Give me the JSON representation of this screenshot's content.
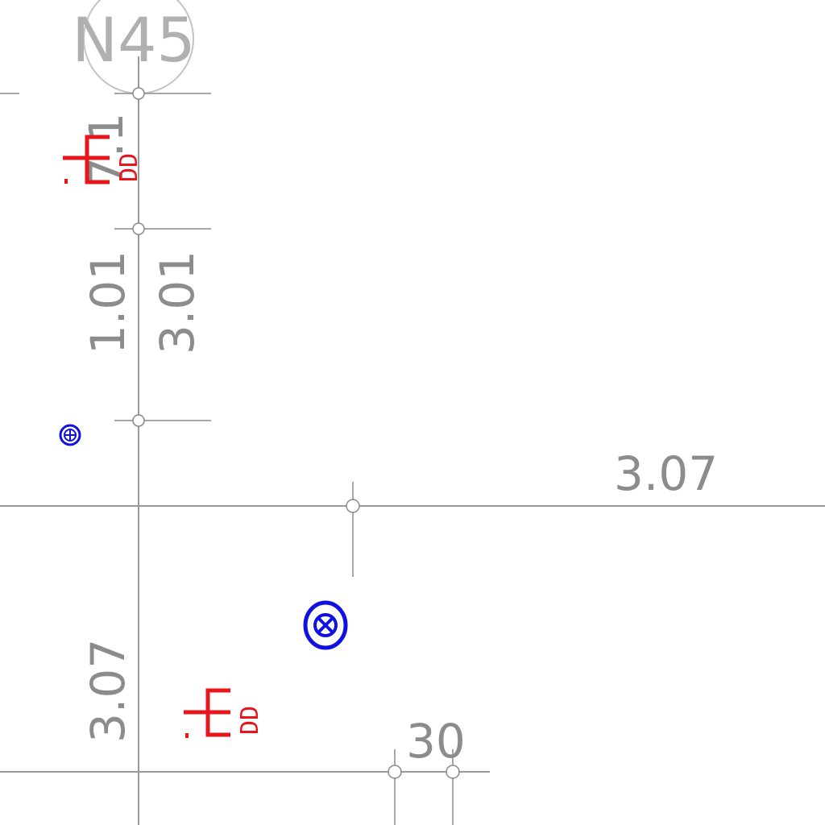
{
  "drawing": {
    "axis_bubble": {
      "label": "N45"
    },
    "dimensions": {
      "top_vertical": "7.1",
      "mid_vertical_left": "1.01",
      "mid_vertical_right": "3.01",
      "horizontal_right": "3.07",
      "bottom_vertical": "3.07",
      "bottom_horizontal": "30"
    },
    "fixtures": {
      "upper_panel_label": "DD",
      "lower_panel_label": "DD"
    },
    "colors": {
      "grid": "#9a9a9a",
      "dimension_text": "#8c8c8c",
      "panel": "#e8161b",
      "outlet": "#1010e0"
    }
  }
}
